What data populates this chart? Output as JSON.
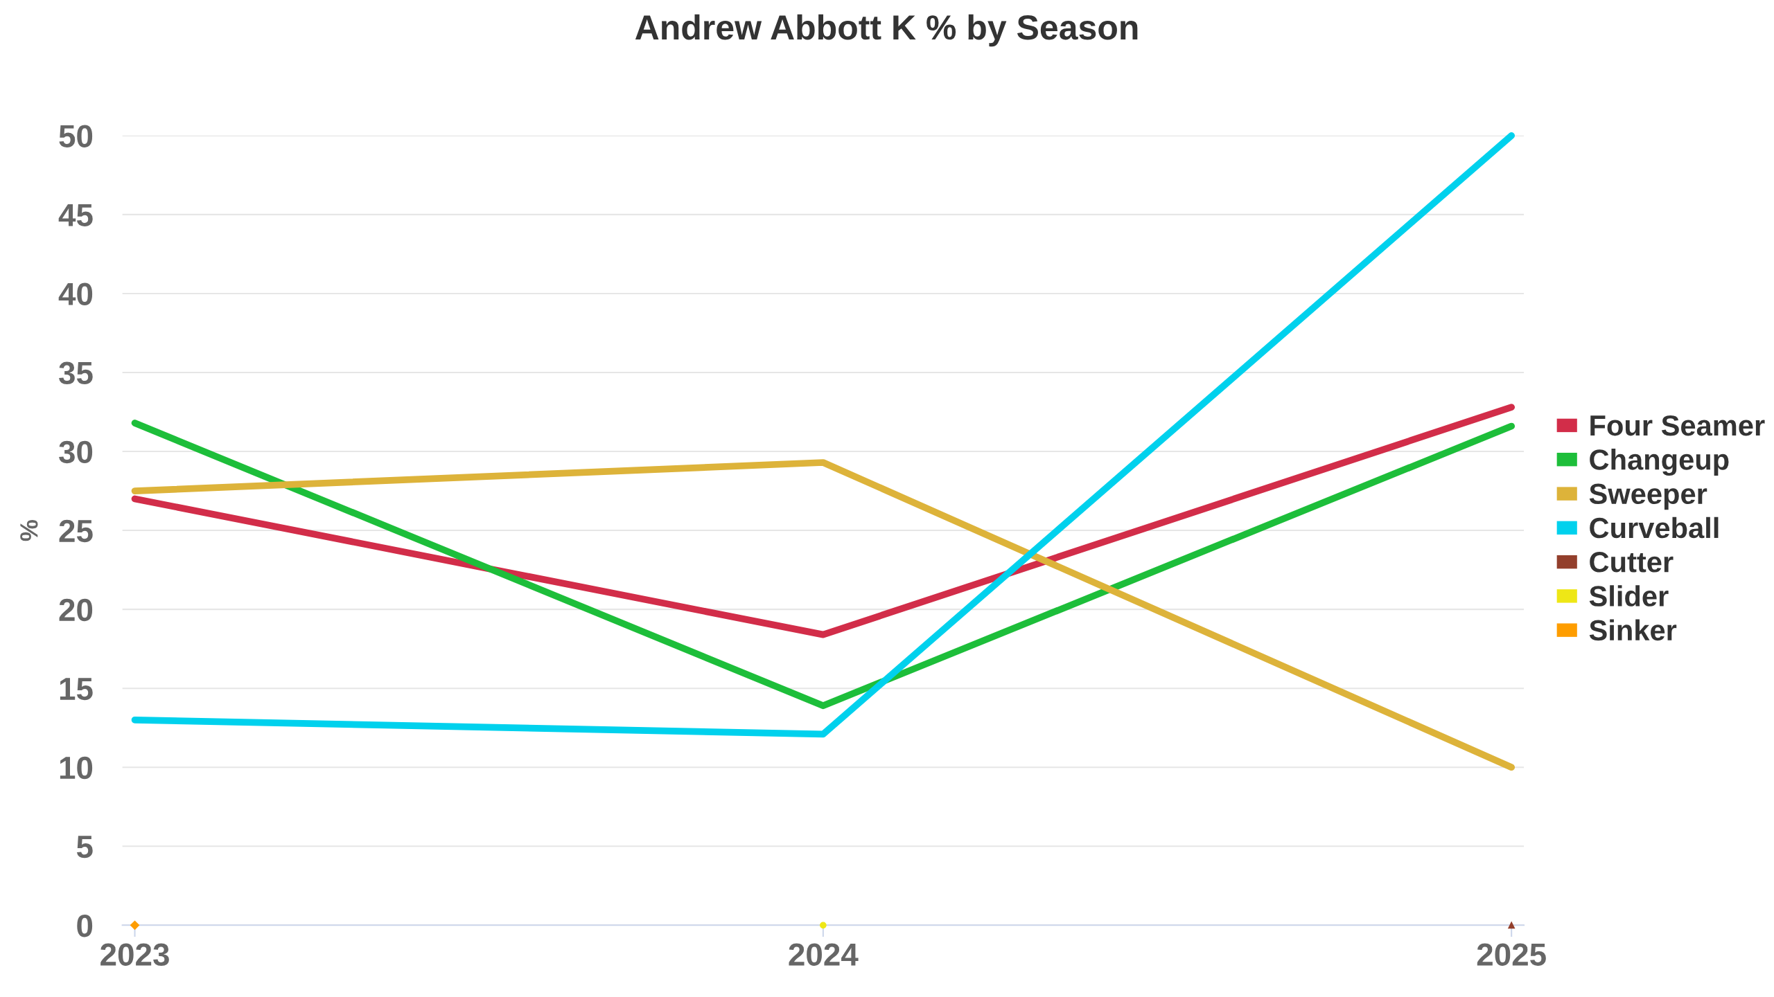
{
  "chart_data": {
    "type": "line",
    "title": "Andrew Abbott K % by Season",
    "ylabel": "%",
    "categories": [
      "2023",
      "2024",
      "2025"
    ],
    "series": [
      {
        "name": "Four Seamer",
        "color": "#d22d49",
        "values": [
          27.0,
          18.4,
          32.8
        ]
      },
      {
        "name": "Changeup",
        "color": "#1dbe3a",
        "values": [
          31.8,
          13.9,
          31.6
        ]
      },
      {
        "name": "Sweeper",
        "color": "#ddb33a",
        "values": [
          27.5,
          29.3,
          10.0
        ]
      },
      {
        "name": "Curveball",
        "color": "#00d1ed",
        "values": [
          13.0,
          12.1,
          50.0
        ]
      },
      {
        "name": "Cutter",
        "color": "#933f2c",
        "values": [
          null,
          null,
          0
        ],
        "marker": "triangle"
      },
      {
        "name": "Slider",
        "color": "#eee716",
        "values": [
          null,
          0,
          null
        ],
        "marker": "circle"
      },
      {
        "name": "Sinker",
        "color": "#fe9d00",
        "values": [
          0,
          null,
          null
        ],
        "marker": "diamond"
      }
    ],
    "ylim": [
      0,
      50
    ],
    "yticks": [
      0,
      5,
      10,
      15,
      20,
      25,
      30,
      35,
      40,
      45,
      50
    ],
    "grid": "y",
    "legend": "right",
    "marker": "none",
    "line_style": "solid"
  }
}
